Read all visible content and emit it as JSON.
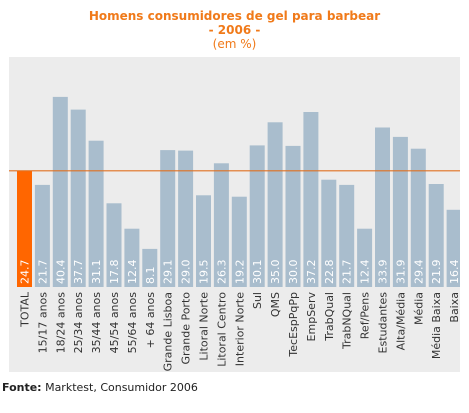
{
  "title": {
    "line1": "Homens consumidores de gel para barbear",
    "line2": "- 2006 -",
    "line3": "(em %)"
  },
  "source": {
    "label": "Fonte:",
    "text": " Marktest, Consumidor 2006"
  },
  "colors": {
    "highlight_bar": "#ff6600",
    "bar": "#a9bdcd",
    "reference_line": "#e07020",
    "panel_bg": "#ececec"
  },
  "chart_data": {
    "type": "bar",
    "categories": [
      "TOTAL",
      "15/17 anos",
      "18/24 anos",
      "25/34 anos",
      "35/44 anos",
      "45/54 anos",
      "55/64 anos",
      "+ 64 anos",
      "Grande Lisboa",
      "Grande Porto",
      "Litoral Norte",
      "Litoral Centro",
      "Interior Norte",
      "Sul",
      "QMS",
      "TecEspPqPp",
      "EmpServ",
      "TrabQual",
      "TrabNQual",
      "Ref/Pens",
      "Estudantes",
      "Alta/Média",
      "Média",
      "Média Baixa",
      "Baixa"
    ],
    "values": [
      24.7,
      21.7,
      40.4,
      37.7,
      31.1,
      17.8,
      12.4,
      8.1,
      29.1,
      29.0,
      19.5,
      26.3,
      19.2,
      30.1,
      35.0,
      30.0,
      37.2,
      22.8,
      21.7,
      12.4,
      33.9,
      31.9,
      29.4,
      21.9,
      16.4
    ],
    "value_labels": [
      "24.7",
      "21.7",
      "40.4",
      "37.7",
      "31.1",
      "17.8",
      "12.4",
      "8.1",
      "29.1",
      "29.0",
      "19.5",
      "26.3",
      "19.2",
      "30.1",
      "35.0",
      "30.0",
      "37.2",
      "22.8",
      "21.7",
      "12.4",
      "33.9",
      "31.9",
      "29.4",
      "21.9",
      "16.4"
    ],
    "highlight_index": 0,
    "reference_line_value": 24.7,
    "ylim": [
      0,
      44
    ],
    "grid": false,
    "legend": "none"
  }
}
